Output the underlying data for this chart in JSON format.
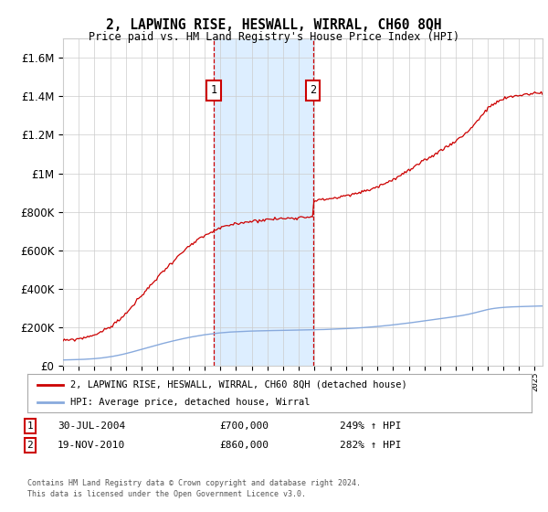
{
  "title": "2, LAPWING RISE, HESWALL, WIRRAL, CH60 8QH",
  "subtitle": "Price paid vs. HM Land Registry's House Price Index (HPI)",
  "legend_label_red": "2, LAPWING RISE, HESWALL, WIRRAL, CH60 8QH (detached house)",
  "legend_label_blue": "HPI: Average price, detached house, Wirral",
  "annotation1_label": "1",
  "annotation1_date": "30-JUL-2004",
  "annotation1_price": "£700,000",
  "annotation1_hpi": "249% ↑ HPI",
  "annotation1_year": 2004.58,
  "annotation1_value": 700000,
  "annotation2_label": "2",
  "annotation2_date": "19-NOV-2010",
  "annotation2_price": "£860,000",
  "annotation2_hpi": "282% ↑ HPI",
  "annotation2_year": 2010.89,
  "annotation2_value": 860000,
  "footer1": "Contains HM Land Registry data © Crown copyright and database right 2024.",
  "footer2": "This data is licensed under the Open Government Licence v3.0.",
  "ylim": [
    0,
    1700000
  ],
  "xlim_start": 1995.0,
  "xlim_end": 2025.5,
  "red_color": "#cc0000",
  "blue_color": "#88aadd",
  "shade_color": "#ddeeff",
  "background_color": "#ffffff",
  "grid_color": "#cccccc"
}
